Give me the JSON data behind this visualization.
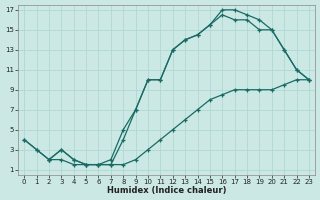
{
  "title": "",
  "xlabel": "Humidex (Indice chaleur)",
  "ylabel": "",
  "bg_color": "#cbe8e4",
  "grid_color": "#b0d8d4",
  "line_color": "#1a6b65",
  "xlim": [
    -0.5,
    23.5
  ],
  "ylim": [
    0.5,
    17.5
  ],
  "xticks": [
    0,
    1,
    2,
    3,
    4,
    5,
    6,
    7,
    8,
    9,
    10,
    11,
    12,
    13,
    14,
    15,
    16,
    17,
    18,
    19,
    20,
    21,
    22,
    23
  ],
  "yticks": [
    1,
    3,
    5,
    7,
    9,
    11,
    13,
    15,
    17
  ],
  "line1_x": [
    0,
    1,
    2,
    3,
    4,
    5,
    6,
    7,
    8,
    9,
    10,
    11,
    12,
    13,
    14,
    15,
    16,
    17,
    18,
    19,
    20,
    21,
    22,
    23
  ],
  "line1_y": [
    4,
    3,
    2,
    2,
    1.5,
    1.5,
    1.5,
    1.5,
    1.5,
    2,
    3,
    4,
    5,
    6,
    7,
    8,
    8.5,
    9,
    9,
    9,
    9,
    9.5,
    10,
    10
  ],
  "line2_x": [
    0,
    1,
    2,
    3,
    4,
    5,
    6,
    7,
    8,
    9,
    10,
    11,
    12,
    13,
    14,
    15,
    16,
    17,
    18,
    19,
    20,
    21,
    22,
    23
  ],
  "line2_y": [
    4,
    3,
    2,
    3,
    2,
    1.5,
    1.5,
    1.5,
    4,
    7,
    10,
    10,
    13,
    14,
    14.5,
    15.5,
    17,
    17,
    16.5,
    16,
    15,
    13,
    11,
    10
  ],
  "line3_x": [
    2,
    3,
    4,
    5,
    6,
    7,
    8,
    9,
    10,
    11,
    12,
    13,
    14,
    15,
    16,
    17,
    18,
    19,
    20,
    21,
    22,
    23
  ],
  "line3_y": [
    2,
    3,
    2,
    1.5,
    1.5,
    2,
    5,
    7,
    10,
    10,
    13,
    14,
    14.5,
    15.5,
    16.5,
    16,
    16,
    15,
    15,
    13,
    11,
    10
  ]
}
